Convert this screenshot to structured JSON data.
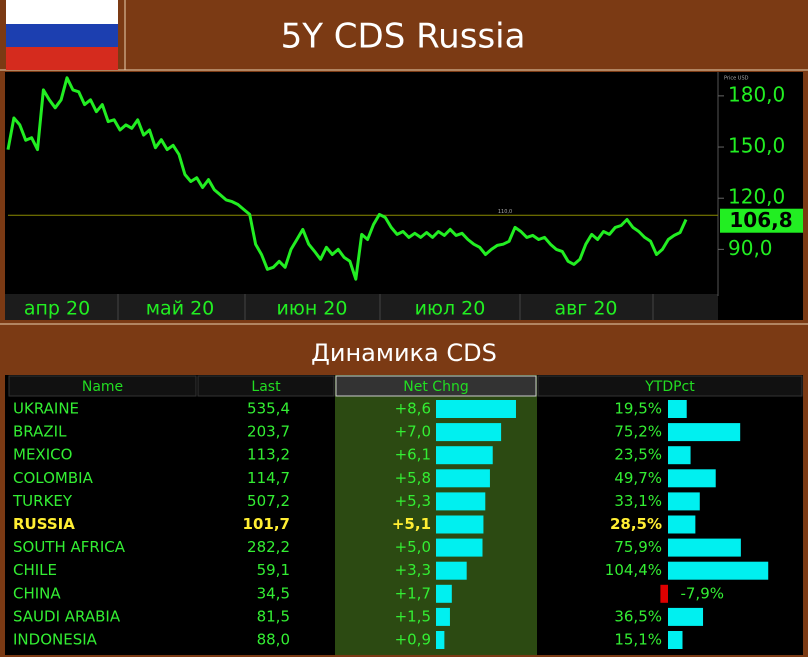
{
  "header": {
    "title": "5Y CDS Russia"
  },
  "chart_data": {
    "type": "line",
    "color": "#22ee22",
    "values": [
      148.5,
      167,
      163,
      154,
      155.5,
      148.5,
      183.5,
      177.7,
      173,
      177.7,
      190.6,
      183.5,
      182.4,
      174.9,
      177.7,
      170.7,
      174.9,
      164.9,
      166,
      160,
      163,
      161,
      166,
      157,
      160,
      149.6,
      154.3,
      148.5,
      151,
      145.6,
      133.9,
      129.8,
      132,
      126.3,
      130.9,
      125,
      122,
      119,
      118,
      116.3,
      113.4,
      110.5,
      93,
      87,
      78.3,
      79.5,
      83,
      79.5,
      90,
      95.8,
      101.7,
      93,
      88.8,
      84.2,
      91.2,
      87,
      90,
      85.3,
      83,
      72.5,
      98.8,
      95.8,
      104.6,
      110.5,
      108.7,
      102.9,
      98.8,
      100.5,
      97,
      99.4,
      97,
      99.9,
      97,
      100.5,
      98.2,
      101.7,
      98.2,
      99.4,
      95.8,
      93,
      91.2,
      87,
      90,
      92.3,
      93,
      94.7,
      102.9,
      100.5,
      97,
      98.2,
      95.8,
      97,
      93,
      90,
      88.8,
      83,
      81.2,
      84.2,
      93,
      98.8,
      95.8,
      100.5,
      98.8,
      102.9,
      104,
      107.5,
      102.9,
      100.5,
      97,
      94.7,
      87,
      90,
      95.8,
      98.2,
      99.9,
      107.5
    ],
    "ylim": [
      65,
      194
    ],
    "yticks": [
      {
        "value": 90,
        "label": "90,0"
      },
      {
        "value": 120,
        "label": "120,0"
      },
      {
        "value": 150,
        "label": "150,0"
      },
      {
        "value": 180,
        "label": "180,0"
      }
    ],
    "y_axis_label": "Price USD",
    "reference_line": {
      "value": 110,
      "label": "110,0",
      "color": "#8a8a00"
    },
    "last_value": {
      "value": 106.8,
      "label": "106,8"
    },
    "x_labels": [
      "апр 20",
      "май 20",
      "июн 20",
      "июл 20",
      "авг 20"
    ]
  },
  "section": {
    "title": "Динамика CDS"
  },
  "table": {
    "columns": [
      "Name",
      "Last",
      "Net Chng",
      "YTDPct"
    ],
    "bar_color": "#00f0f0",
    "negative_color": "#e00000",
    "rows": [
      {
        "name": "UKRAINE",
        "last": "535,4",
        "net_chng": {
          "value": 8.6,
          "label": "+8,6"
        },
        "ytd": {
          "value": 19.5,
          "label": "19,5%"
        }
      },
      {
        "name": "BRAZIL",
        "last": "203,7",
        "net_chng": {
          "value": 7.0,
          "label": "+7,0"
        },
        "ytd": {
          "value": 75.2,
          "label": "75,2%"
        }
      },
      {
        "name": "MEXICO",
        "last": "113,2",
        "net_chng": {
          "value": 6.1,
          "label": "+6,1"
        },
        "ytd": {
          "value": 23.5,
          "label": "23,5%"
        }
      },
      {
        "name": "COLOMBIA",
        "last": "114,7",
        "net_chng": {
          "value": 5.8,
          "label": "+5,8"
        },
        "ytd": {
          "value": 49.7,
          "label": "49,7%"
        }
      },
      {
        "name": "TURKEY",
        "last": "507,2",
        "net_chng": {
          "value": 5.3,
          "label": "+5,3"
        },
        "ytd": {
          "value": 33.1,
          "label": "33,1%"
        }
      },
      {
        "name": "RUSSIA",
        "last": "101,7",
        "net_chng": {
          "value": 5.1,
          "label": "+5,1"
        },
        "ytd": {
          "value": 28.5,
          "label": "28,5%"
        },
        "highlight": true
      },
      {
        "name": "SOUTH AFRICA",
        "last": "282,2",
        "net_chng": {
          "value": 5.0,
          "label": "+5,0"
        },
        "ytd": {
          "value": 75.9,
          "label": "75,9%"
        }
      },
      {
        "name": "CHILE",
        "last": "59,1",
        "net_chng": {
          "value": 3.3,
          "label": "+3,3"
        },
        "ytd": {
          "value": 104.4,
          "label": "104,4%"
        }
      },
      {
        "name": "CHINA",
        "last": "34,5",
        "net_chng": {
          "value": 1.7,
          "label": "+1,7"
        },
        "ytd": {
          "value": -7.9,
          "label": "-7,9%"
        }
      },
      {
        "name": "SAUDI ARABIA",
        "last": "81,5",
        "net_chng": {
          "value": 1.5,
          "label": "+1,5"
        },
        "ytd": {
          "value": 36.5,
          "label": "36,5%"
        }
      },
      {
        "name": "INDONESIA",
        "last": "88,0",
        "net_chng": {
          "value": 0.9,
          "label": "+0,9"
        },
        "ytd": {
          "value": 15.1,
          "label": "15,1%"
        }
      }
    ]
  }
}
